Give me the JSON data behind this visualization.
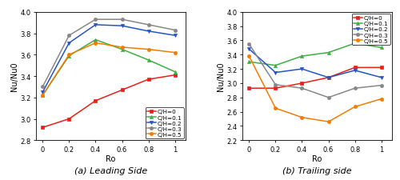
{
  "x": [
    0,
    0.2,
    0.4,
    0.6,
    0.8,
    1.0
  ],
  "leading": {
    "CH0": [
      2.92,
      3.0,
      3.17,
      3.27,
      3.37,
      3.41
    ],
    "CH01": [
      3.22,
      3.59,
      3.74,
      3.65,
      3.55,
      3.44
    ],
    "CH02": [
      3.25,
      3.71,
      3.88,
      3.87,
      3.82,
      3.78
    ],
    "CH03": [
      3.3,
      3.78,
      3.93,
      3.93,
      3.88,
      3.83
    ],
    "CH05": [
      3.22,
      3.6,
      3.71,
      3.67,
      3.65,
      3.62
    ]
  },
  "trailing": {
    "CH0": [
      2.93,
      2.93,
      3.0,
      3.08,
      3.22,
      3.22
    ],
    "CH01": [
      3.3,
      3.25,
      3.38,
      3.43,
      3.56,
      3.5
    ],
    "CH02": [
      3.48,
      3.15,
      3.2,
      3.08,
      3.18,
      3.08
    ],
    "CH03": [
      3.55,
      2.98,
      2.93,
      2.8,
      2.93,
      2.97
    ],
    "CH05": [
      3.38,
      2.65,
      2.52,
      2.46,
      2.67,
      2.78
    ]
  },
  "colors": {
    "CH0": "#e8201a",
    "CH01": "#3cb043",
    "CH02": "#2455c7",
    "CH03": "#888888",
    "CH05": "#f57c00"
  },
  "markers": {
    "CH0": "s",
    "CH01": "^",
    "CH02": "v",
    "CH03": "o",
    "CH05": "o"
  },
  "labels": {
    "CH0": "C/H=0",
    "CH01": "C/H=0.1",
    "CH02": "C/H=0.2",
    "CH03": "C/H=0.3",
    "CH05": "C/H=0.5"
  },
  "leading_ylim": [
    2.8,
    4.0
  ],
  "trailing_ylim": [
    2.2,
    4.0
  ],
  "leading_yticks": [
    2.8,
    3.0,
    3.2,
    3.4,
    3.6,
    3.8,
    4.0
  ],
  "trailing_yticks": [
    2.2,
    2.4,
    2.6,
    2.8,
    3.0,
    3.2,
    3.4,
    3.6,
    3.8,
    4.0
  ],
  "xticks": [
    0,
    0.2,
    0.4,
    0.6,
    0.8,
    1
  ],
  "xtick_labels": [
    "0",
    "0.2",
    "0.4",
    "0.6",
    "0.8",
    "1"
  ],
  "xlabel": "Ro",
  "ylabel": "Nu/Nu0",
  "caption_a": "(a) Leading Side",
  "caption_b": "(b) Trailing side",
  "leading_legend_loc": "lower right",
  "trailing_legend_loc": "upper right"
}
